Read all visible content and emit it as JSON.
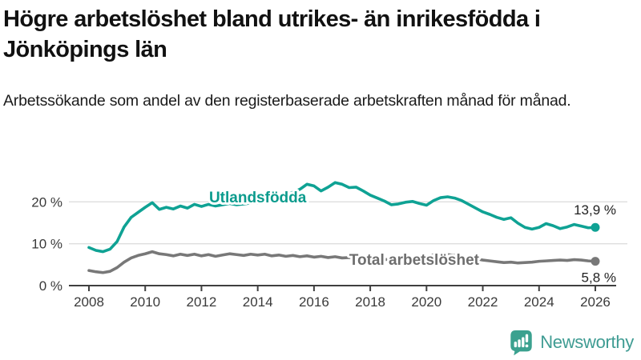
{
  "header": {
    "title": "Högre arbetslöshet bland utrikes- än inrikesfödda i Jönköpings län",
    "subtitle": "Arbetssökande som andel av den registerbaserade arbetskraften månad för månad."
  },
  "branding": {
    "name": "Newsworthy",
    "icon": "newsworthy-bubble-chart-icon",
    "icon_color": "#3BA18F",
    "text_color": "#3F9C93"
  },
  "chart_data": {
    "type": "line",
    "title": "Högre arbetslöshet bland utrikes- än inrikesfödda i Jönköpings län",
    "subtitle": "Arbetssökande som andel av den registerbaserade arbetskraften månad för månad.",
    "xlabel": "",
    "ylabel": "",
    "grid": "horizontal",
    "legend_position": "inline-labels",
    "xlim": [
      2007.3,
      2027.1
    ],
    "ylim": [
      0,
      26
    ],
    "xticks": [
      2008,
      2010,
      2012,
      2014,
      2016,
      2018,
      2020,
      2022,
      2024,
      2026
    ],
    "yticks": [
      {
        "value": 0,
        "label": "0 %"
      },
      {
        "value": 10,
        "label": "10 %"
      },
      {
        "value": 20,
        "label": "20 %"
      }
    ],
    "colors": {
      "grid": "#dedede",
      "axis": "#3f3f3f",
      "teal": "#0FA294",
      "gray": "#787878"
    },
    "x_start": 2008,
    "x_step": 0.25,
    "series": [
      {
        "name": "Utlandsfödda",
        "color": "#0FA294",
        "label_color": "#0B9B8D",
        "label_pos": {
          "x": 2014.0,
          "y": 19.9
        },
        "label_anchor": "middle",
        "end_label": "13,9 %",
        "end_label_position": "above",
        "values": [
          9.1,
          8.4,
          8.1,
          8.7,
          10.5,
          14.0,
          16.3,
          17.5,
          18.7,
          19.8,
          18.2,
          18.7,
          18.3,
          19.0,
          18.5,
          19.4,
          18.9,
          19.4,
          19.0,
          19.3,
          19.6,
          19.3,
          19.5,
          19.7,
          19.8,
          20.3,
          20.8,
          21.2,
          21.6,
          22.3,
          23.0,
          24.2,
          23.8,
          22.6,
          23.5,
          24.6,
          24.2,
          23.4,
          23.5,
          22.6,
          21.6,
          20.9,
          20.2,
          19.3,
          19.5,
          19.9,
          20.1,
          19.6,
          19.2,
          20.3,
          21.0,
          21.2,
          20.9,
          20.3,
          19.4,
          18.5,
          17.6,
          17.0,
          16.3,
          15.8,
          16.2,
          14.9,
          13.9,
          13.5,
          13.9,
          14.8,
          14.3,
          13.6,
          14.0,
          14.6,
          14.2,
          13.8,
          13.9
        ]
      },
      {
        "name": "Total arbetslöshet",
        "color": "#787878",
        "label_color": "#6e6e6e",
        "label_pos": {
          "x": 2017.25,
          "y": 4.95
        },
        "label_anchor": "start",
        "end_label": "5,8 %",
        "end_label_position": "below",
        "values": [
          3.6,
          3.3,
          3.1,
          3.4,
          4.3,
          5.6,
          6.6,
          7.2,
          7.6,
          8.1,
          7.6,
          7.4,
          7.1,
          7.5,
          7.2,
          7.5,
          7.1,
          7.4,
          7.0,
          7.3,
          7.6,
          7.4,
          7.2,
          7.5,
          7.3,
          7.5,
          7.1,
          7.3,
          7.0,
          7.2,
          6.9,
          7.1,
          6.8,
          7.0,
          6.7,
          6.9,
          6.6,
          6.7,
          6.5,
          6.6,
          6.3,
          6.4,
          6.2,
          6.3,
          6.2,
          6.3,
          6.4,
          6.4,
          6.5,
          7.4,
          7.6,
          7.4,
          7.2,
          7.0,
          6.7,
          6.4,
          6.1,
          5.9,
          5.7,
          5.5,
          5.6,
          5.4,
          5.5,
          5.6,
          5.8,
          5.9,
          6.0,
          6.1,
          6.0,
          6.2,
          6.1,
          5.9,
          5.8
        ]
      }
    ]
  }
}
